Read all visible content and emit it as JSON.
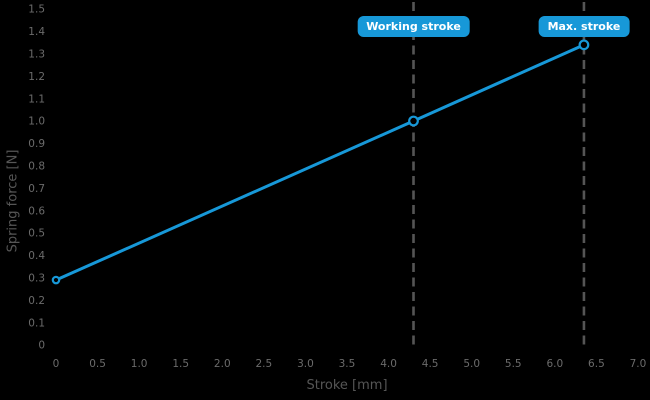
{
  "chart_data": {
    "type": "line",
    "title": "",
    "xlabel": "Stroke [mm]",
    "ylabel": "Spring force [N]",
    "xlim": [
      0,
      7.0
    ],
    "ylim": [
      0,
      1.5
    ],
    "grid": false,
    "legend": "none",
    "x_ticks": [
      {
        "value": 0,
        "label": "0"
      },
      {
        "value": 0.5,
        "label": "0.5"
      },
      {
        "value": 1.0,
        "label": "1.0"
      },
      {
        "value": 1.5,
        "label": "1.5"
      },
      {
        "value": 2.0,
        "label": "2.0"
      },
      {
        "value": 2.5,
        "label": "2.5"
      },
      {
        "value": 3.0,
        "label": "3.0"
      },
      {
        "value": 3.5,
        "label": "3.5"
      },
      {
        "value": 4.0,
        "label": "4.0"
      },
      {
        "value": 4.5,
        "label": "4.5"
      },
      {
        "value": 5.0,
        "label": "5.0"
      },
      {
        "value": 5.5,
        "label": "5.5"
      },
      {
        "value": 6.0,
        "label": "6.0"
      },
      {
        "value": 6.5,
        "label": "6.5"
      },
      {
        "value": 7.0,
        "label": "7.0"
      }
    ],
    "y_ticks": [
      {
        "value": 0,
        "label": "0"
      },
      {
        "value": 0.1,
        "label": "0.1"
      },
      {
        "value": 0.2,
        "label": "0.2"
      },
      {
        "value": 0.3,
        "label": "0.3"
      },
      {
        "value": 0.4,
        "label": "0.4"
      },
      {
        "value": 0.5,
        "label": "0.5"
      },
      {
        "value": 0.6,
        "label": "0.6"
      },
      {
        "value": 0.7,
        "label": "0.7"
      },
      {
        "value": 0.8,
        "label": "0.8"
      },
      {
        "value": 0.9,
        "label": "0.9"
      },
      {
        "value": 1.0,
        "label": "1.0"
      },
      {
        "value": 1.1,
        "label": "1.1"
      },
      {
        "value": 1.2,
        "label": "1.2"
      },
      {
        "value": 1.3,
        "label": "1.3"
      },
      {
        "value": 1.4,
        "label": "1.4"
      },
      {
        "value": 1.5,
        "label": "1.5"
      }
    ],
    "series": [
      {
        "name": "spring-force",
        "color": "#1798d8",
        "points": [
          {
            "x": 0,
            "y": 0.29
          },
          {
            "x": 4.3,
            "y": 1.0
          },
          {
            "x": 6.35,
            "y": 1.34
          }
        ]
      }
    ],
    "annotations": [
      {
        "label": "Working stroke",
        "x": 4.3
      },
      {
        "label": "Max. stroke",
        "x": 6.35
      }
    ],
    "colors": {
      "background": "#000000",
      "line": "#1798d8",
      "marker_fill": "#000000",
      "guide_line": "#555555",
      "tick_text": "#6b6b6b",
      "axis_title_text": "#565656",
      "annotation_bg": "#1798d8",
      "annotation_text": "#ffffff"
    }
  }
}
